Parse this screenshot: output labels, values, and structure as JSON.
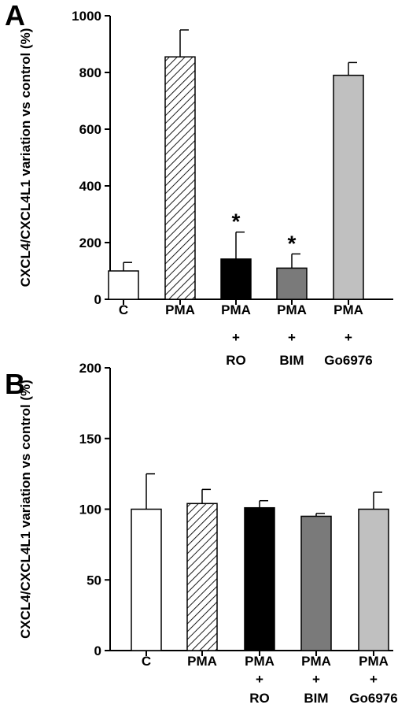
{
  "chart_data": [
    {
      "type": "bar",
      "panel_label": "A",
      "categories": [
        "C",
        "PMA",
        "PMA\n+\nRO",
        "PMA\n+\nBIM",
        "PMA\n+\nGo6976"
      ],
      "values": [
        100,
        855,
        142,
        110,
        790
      ],
      "errors": [
        30,
        95,
        95,
        50,
        45
      ],
      "significance": [
        "",
        "",
        "*",
        "*",
        ""
      ],
      "ylabel": "CXCL4/CXCL4L1 variation vs control (%)",
      "xlabel": "",
      "ylim": [
        0,
        1000
      ],
      "yticks": [
        0,
        200,
        400,
        600,
        800,
        1000
      ],
      "grid": false,
      "bar_fills": [
        "white",
        "hatch",
        "#000000",
        "#7a7a7a",
        "#c0c0c0"
      ]
    },
    {
      "type": "bar",
      "panel_label": "B",
      "categories": [
        "C",
        "PMA",
        "PMA\n+\nRO",
        "PMA\n+\nBIM",
        "PMA\n+\nGo6976"
      ],
      "values": [
        100,
        104,
        101,
        95,
        100
      ],
      "errors": [
        25,
        10,
        5,
        2,
        12
      ],
      "significance": [
        "",
        "",
        "",
        "",
        ""
      ],
      "ylabel": "CXCL4/CXCL4L1 variation vs control (%)",
      "xlabel": "",
      "ylim": [
        0,
        200
      ],
      "yticks": [
        0,
        50,
        100,
        150,
        200
      ],
      "grid": false,
      "bar_fills": [
        "white",
        "hatch",
        "#000000",
        "#7a7a7a",
        "#c0c0c0"
      ]
    }
  ]
}
